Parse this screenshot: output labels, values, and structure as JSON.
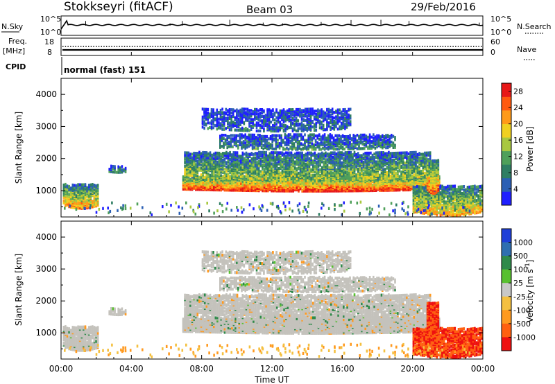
{
  "header": {
    "station": "Stokkseyri (fitACF)",
    "beam": "Beam 03",
    "date": "29/Feb/2016"
  },
  "summary_panel": {
    "nsky_label": "N.Sky",
    "nsearch_label": "N.Search",
    "freq_label_line1": "Freq.",
    "freq_label_line2": "[MHz]",
    "cpid_label": "CPID",
    "nave_label": "Nave",
    "noise_ticks": [
      "10^5",
      "10^0"
    ],
    "freq_ticks": [
      "18",
      "8"
    ],
    "nave_ticks": [
      "60",
      "0"
    ],
    "cpid_name": "normal (fast) 151"
  },
  "colors": {
    "power_scale": [
      "#1f1fff",
      "#2b5fb4",
      "#2f7e63",
      "#4fa05a",
      "#a8c840",
      "#f0d020",
      "#ff9a18",
      "#ff5a10",
      "#e81818"
    ],
    "velocity_scale": [
      "#ee1010",
      "#ff6010",
      "#ff9a20",
      "#f4c040",
      "#c8c8c8",
      "#58c030",
      "#2f8a4a",
      "#2f6fb0",
      "#1f3fd8"
    ],
    "velocity_gray": "#c4c2bc"
  },
  "chart_data": [
    {
      "type": "heatmap",
      "panel": "power",
      "xlabel": "Time UT",
      "ylabel": "Slant Range [km]",
      "x_ticks": [
        "00:00",
        "04:00",
        "08:00",
        "12:00",
        "16:00",
        "20:00",
        "00:00"
      ],
      "xlim": [
        0,
        24
      ],
      "ylim": [
        180,
        4500
      ],
      "y_ticks": [
        "1000",
        "2000",
        "3000",
        "4000"
      ],
      "colorbar": {
        "label": "Power [dB]",
        "ticks": [
          "4",
          "8",
          "12",
          "16",
          "20",
          "24",
          "28"
        ],
        "range": [
          0,
          30
        ]
      },
      "echo_regions": [
        {
          "t0": 0.1,
          "t1": 2.1,
          "r0": 500,
          "r1": 1150,
          "level": 0.75
        },
        {
          "t0": 2.7,
          "t1": 3.7,
          "r0": 1550,
          "r1": 1720,
          "level": 0.3
        },
        {
          "t0": 6.9,
          "t1": 21.5,
          "r0": 1000,
          "r1": 1400,
          "level": 0.95
        },
        {
          "t0": 7.0,
          "t1": 21.0,
          "r0": 1400,
          "r1": 2150,
          "level": 0.5
        },
        {
          "t0": 9.0,
          "t1": 19.0,
          "r0": 2300,
          "r1": 2700,
          "level": 0.3
        },
        {
          "t0": 8.0,
          "t1": 16.5,
          "r0": 2900,
          "r1": 3500,
          "level": 0.2
        },
        {
          "t0": 20.0,
          "t1": 24.0,
          "r0": 300,
          "r1": 1100,
          "level": 0.7
        },
        {
          "t0": 20.8,
          "t1": 21.5,
          "r0": 1000,
          "r1": 1900,
          "level": 0.85
        }
      ]
    },
    {
      "type": "heatmap",
      "panel": "velocity",
      "xlabel": "Time UT",
      "ylabel": "Slant Range [km]",
      "x_ticks": [
        "00:00",
        "04:00",
        "08:00",
        "12:00",
        "16:00",
        "20:00",
        "00:00"
      ],
      "xlim": [
        0,
        24
      ],
      "ylim": [
        180,
        4500
      ],
      "y_ticks": [
        "1000",
        "2000",
        "3000",
        "4000"
      ],
      "colorbar": {
        "label": "Velocity [m s^-1]",
        "ticks": [
          "1000",
          "500",
          "100",
          "25",
          "-25",
          "-100",
          "-500",
          "-1000"
        ]
      },
      "echo_regions": [
        {
          "t0": 0.1,
          "t1": 2.1,
          "r0": 500,
          "r1": 1150,
          "v": 0
        },
        {
          "t0": 7.0,
          "t1": 21.0,
          "r0": 1000,
          "r1": 2150,
          "v": 0
        },
        {
          "t0": 9.0,
          "t1": 19.0,
          "r0": 2300,
          "r1": 2700,
          "v": 0
        },
        {
          "t0": 8.0,
          "t1": 16.5,
          "r0": 2900,
          "r1": 3500,
          "v": 0
        },
        {
          "t0": 20.0,
          "t1": 22.5,
          "r0": 500,
          "r1": 1200,
          "v": -500
        },
        {
          "t0": 21.5,
          "t1": 24.0,
          "r0": 300,
          "r1": 1100,
          "v": -1000
        }
      ]
    }
  ]
}
